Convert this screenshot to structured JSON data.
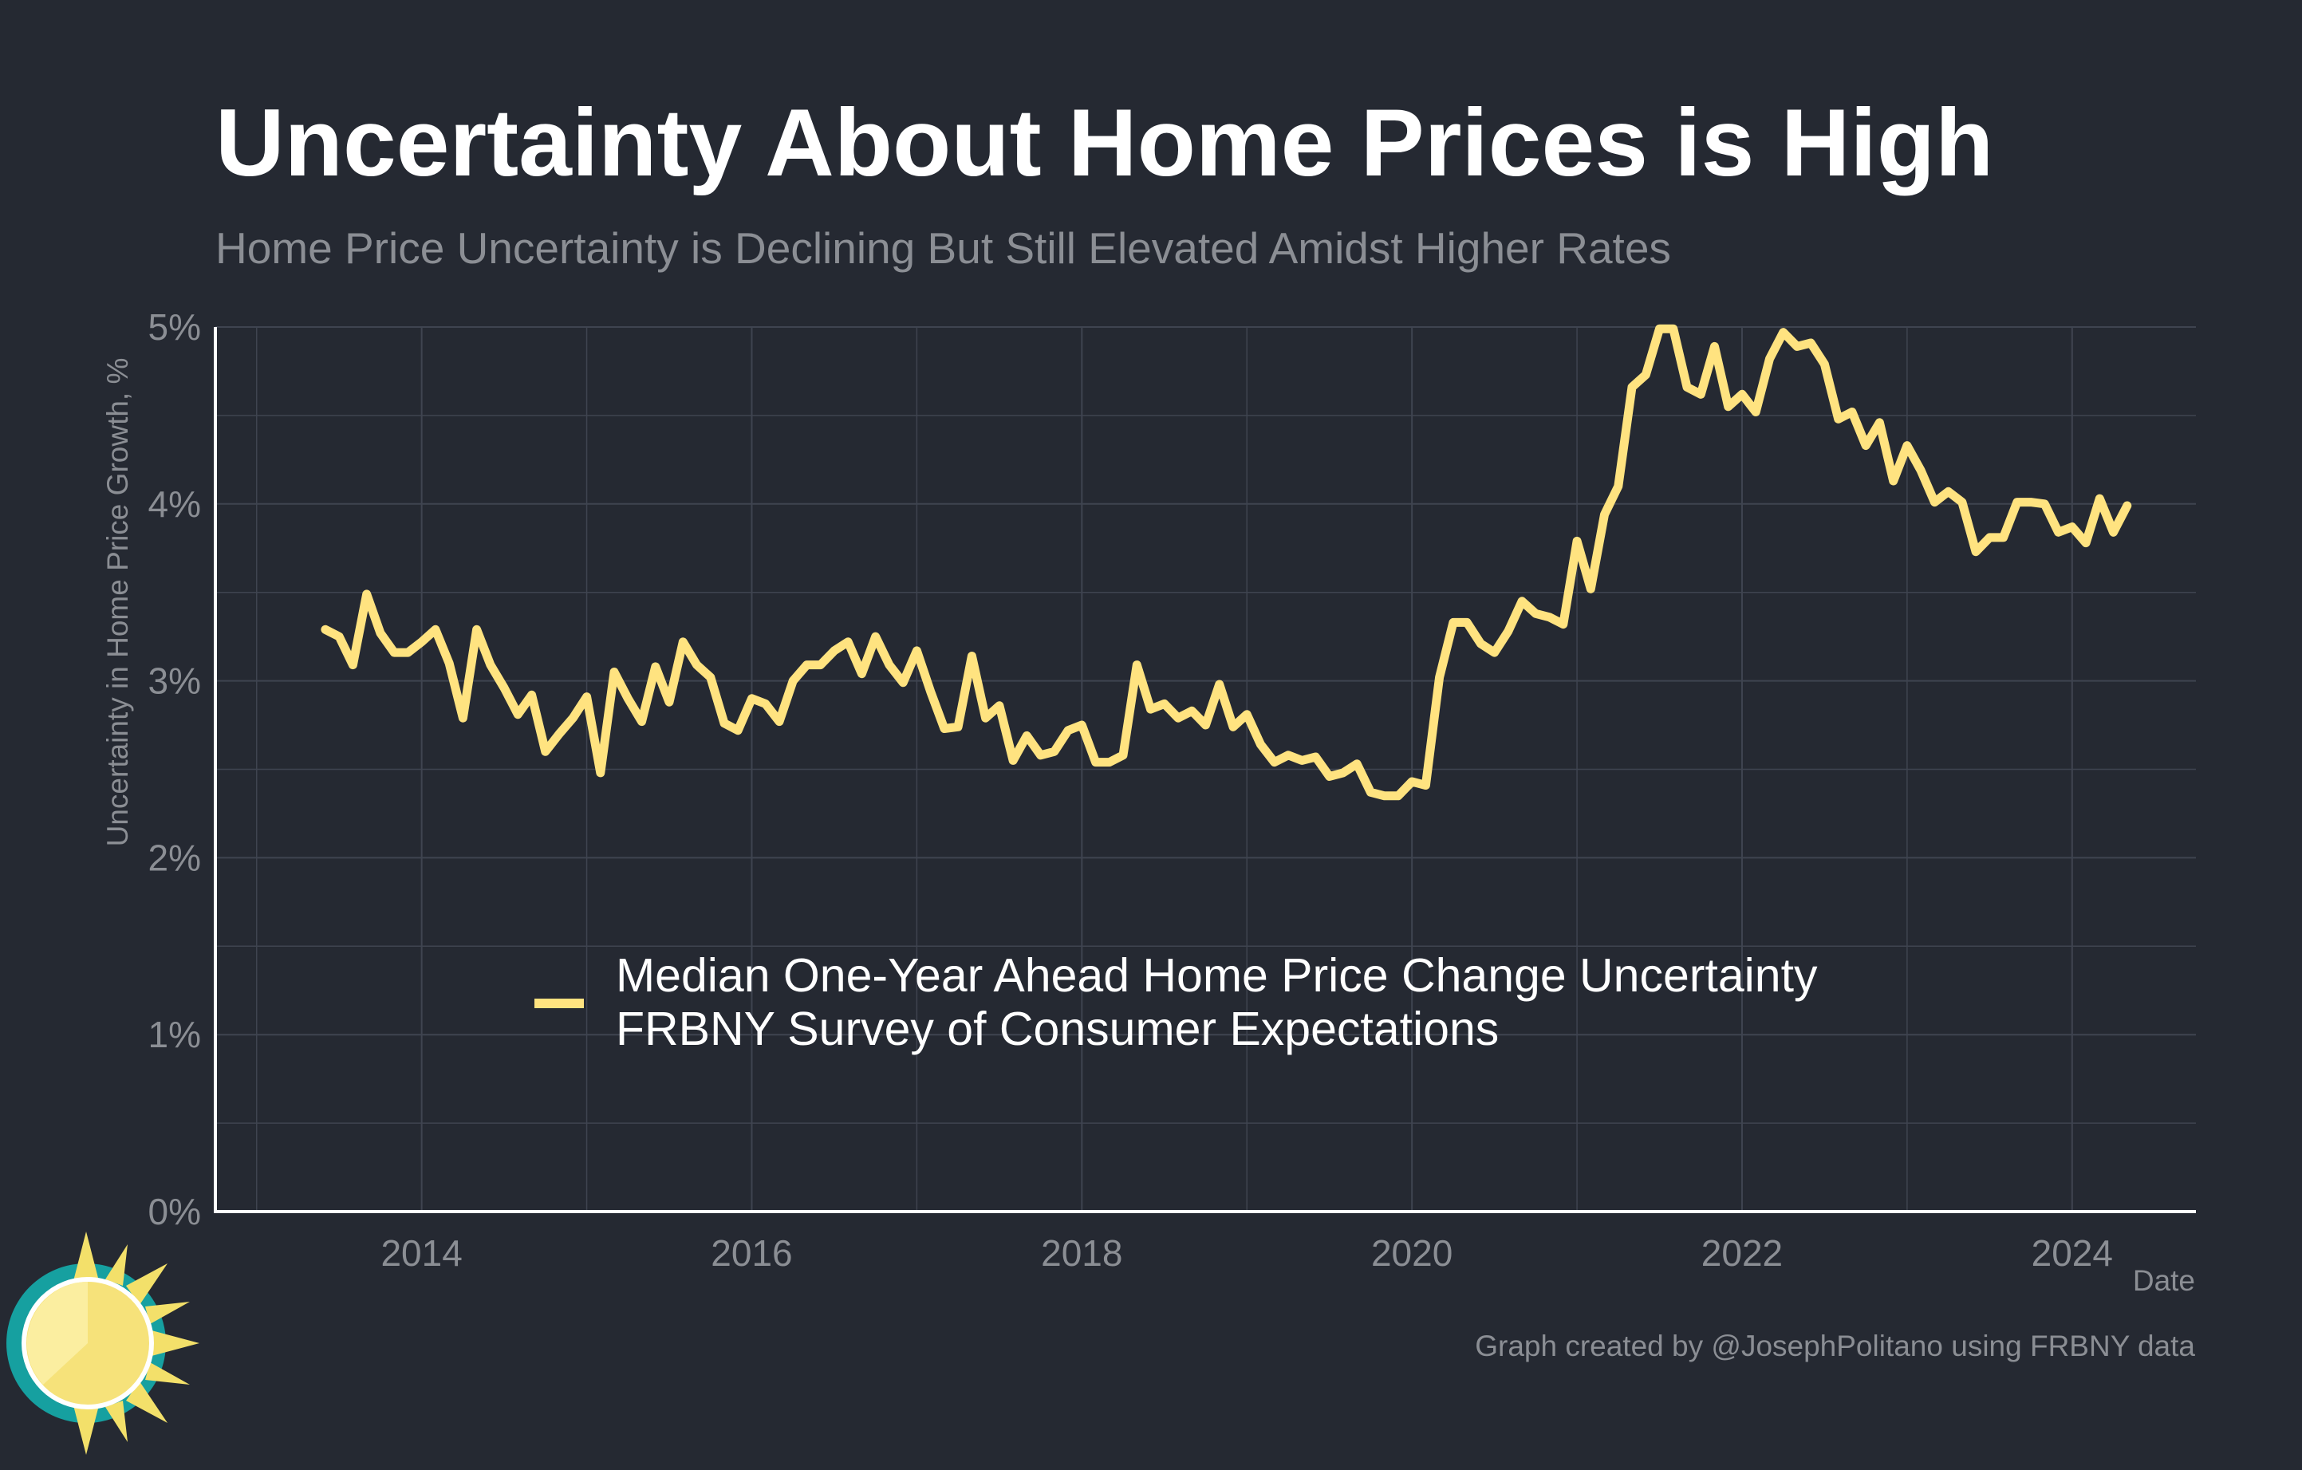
{
  "chart_data": {
    "type": "line",
    "title": "Uncertainty About Home Prices is High",
    "subtitle": "Home Price Uncertainty is Declining But Still Elevated Amidst Higher Rates",
    "xlabel": "Date",
    "ylabel": "Uncertainty in Home Price Growth, %",
    "xlim": [
      2012.75,
      2024.75
    ],
    "ylim": [
      0,
      5
    ],
    "x_ticks": [
      "2014",
      "2016",
      "2018",
      "2020",
      "2022",
      "2024"
    ],
    "y_ticks": [
      "0%",
      "1%",
      "2%",
      "3%",
      "4%",
      "5%"
    ],
    "grid": true,
    "legend": {
      "position": "center",
      "lines": [
        "Median One-Year Ahead Home Price Change Uncertainty",
        "FRBNY Survey of Consumer Expectations"
      ]
    },
    "series": [
      {
        "name": "Median One-Year Ahead Home Price Change Uncertainty",
        "color": "#ffe380",
        "points": [
          [
            "2013-06",
            3.29
          ],
          [
            "2013-07",
            3.25
          ],
          [
            "2013-08",
            3.09
          ],
          [
            "2013-09",
            3.49
          ],
          [
            "2013-10",
            3.27
          ],
          [
            "2013-11",
            3.16
          ],
          [
            "2013-12",
            3.16
          ],
          [
            "2014-01",
            3.22
          ],
          [
            "2014-02",
            3.29
          ],
          [
            "2014-03",
            3.1
          ],
          [
            "2014-04",
            2.79
          ],
          [
            "2014-05",
            3.29
          ],
          [
            "2014-06",
            3.09
          ],
          [
            "2014-07",
            2.96
          ],
          [
            "2014-08",
            2.81
          ],
          [
            "2014-09",
            2.92
          ],
          [
            "2014-10",
            2.6
          ],
          [
            "2014-11",
            2.7
          ],
          [
            "2014-12",
            2.79
          ],
          [
            "2015-01",
            2.91
          ],
          [
            "2015-02",
            2.48
          ],
          [
            "2015-03",
            3.05
          ],
          [
            "2015-04",
            2.9
          ],
          [
            "2015-05",
            2.77
          ],
          [
            "2015-06",
            3.08
          ],
          [
            "2015-07",
            2.88
          ],
          [
            "2015-08",
            3.22
          ],
          [
            "2015-09",
            3.09
          ],
          [
            "2015-10",
            3.02
          ],
          [
            "2015-11",
            2.76
          ],
          [
            "2015-12",
            2.72
          ],
          [
            "2016-01",
            2.9
          ],
          [
            "2016-02",
            2.87
          ],
          [
            "2016-03",
            2.77
          ],
          [
            "2016-04",
            3.0
          ],
          [
            "2016-05",
            3.09
          ],
          [
            "2016-06",
            3.09
          ],
          [
            "2016-07",
            3.17
          ],
          [
            "2016-08",
            3.22
          ],
          [
            "2016-09",
            3.04
          ],
          [
            "2016-10",
            3.25
          ],
          [
            "2016-11",
            3.09
          ],
          [
            "2016-12",
            2.99
          ],
          [
            "2017-01",
            3.17
          ],
          [
            "2017-02",
            2.94
          ],
          [
            "2017-03",
            2.73
          ],
          [
            "2017-04",
            2.74
          ],
          [
            "2017-05",
            3.14
          ],
          [
            "2017-06",
            2.79
          ],
          [
            "2017-07",
            2.86
          ],
          [
            "2017-08",
            2.55
          ],
          [
            "2017-09",
            2.69
          ],
          [
            "2017-10",
            2.58
          ],
          [
            "2017-11",
            2.6
          ],
          [
            "2017-12",
            2.72
          ],
          [
            "2018-01",
            2.75
          ],
          [
            "2018-02",
            2.54
          ],
          [
            "2018-03",
            2.54
          ],
          [
            "2018-04",
            2.58
          ],
          [
            "2018-05",
            3.09
          ],
          [
            "2018-06",
            2.84
          ],
          [
            "2018-07",
            2.87
          ],
          [
            "2018-08",
            2.79
          ],
          [
            "2018-09",
            2.83
          ],
          [
            "2018-10",
            2.75
          ],
          [
            "2018-11",
            2.98
          ],
          [
            "2018-12",
            2.74
          ],
          [
            "2019-01",
            2.81
          ],
          [
            "2019-02",
            2.64
          ],
          [
            "2019-03",
            2.54
          ],
          [
            "2019-04",
            2.58
          ],
          [
            "2019-05",
            2.55
          ],
          [
            "2019-06",
            2.57
          ],
          [
            "2019-07",
            2.46
          ],
          [
            "2019-08",
            2.48
          ],
          [
            "2019-09",
            2.53
          ],
          [
            "2019-10",
            2.37
          ],
          [
            "2019-11",
            2.35
          ],
          [
            "2019-12",
            2.35
          ],
          [
            "2020-01",
            2.43
          ],
          [
            "2020-02",
            2.41
          ],
          [
            "2020-03",
            3.02
          ],
          [
            "2020-04",
            3.33
          ],
          [
            "2020-05",
            3.33
          ],
          [
            "2020-06",
            3.21
          ],
          [
            "2020-07",
            3.16
          ],
          [
            "2020-08",
            3.28
          ],
          [
            "2020-09",
            3.45
          ],
          [
            "2020-10",
            3.38
          ],
          [
            "2020-11",
            3.36
          ],
          [
            "2020-12",
            3.32
          ],
          [
            "2021-01",
            3.79
          ],
          [
            "2021-02",
            3.52
          ],
          [
            "2021-03",
            3.94
          ],
          [
            "2021-04",
            4.1
          ],
          [
            "2021-05",
            4.66
          ],
          [
            "2021-06",
            4.73
          ],
          [
            "2021-07",
            4.99
          ],
          [
            "2021-08",
            4.99
          ],
          [
            "2021-09",
            4.66
          ],
          [
            "2021-10",
            4.62
          ],
          [
            "2021-11",
            4.89
          ],
          [
            "2021-12",
            4.55
          ],
          [
            "2022-01",
            4.62
          ],
          [
            "2022-02",
            4.52
          ],
          [
            "2022-03",
            4.82
          ],
          [
            "2022-04",
            4.97
          ],
          [
            "2022-05",
            4.89
          ],
          [
            "2022-06",
            4.91
          ],
          [
            "2022-07",
            4.79
          ],
          [
            "2022-08",
            4.48
          ],
          [
            "2022-09",
            4.52
          ],
          [
            "2022-10",
            4.33
          ],
          [
            "2022-11",
            4.46
          ],
          [
            "2022-12",
            4.13
          ],
          [
            "2023-01",
            4.33
          ],
          [
            "2023-02",
            4.19
          ],
          [
            "2023-03",
            4.01
          ],
          [
            "2023-04",
            4.07
          ],
          [
            "2023-05",
            4.01
          ],
          [
            "2023-06",
            3.73
          ],
          [
            "2023-07",
            3.81
          ],
          [
            "2023-08",
            3.81
          ],
          [
            "2023-09",
            4.01
          ],
          [
            "2023-10",
            4.01
          ],
          [
            "2023-11",
            4.0
          ],
          [
            "2023-12",
            3.84
          ],
          [
            "2024-01",
            3.87
          ],
          [
            "2024-02",
            3.78
          ],
          [
            "2024-03",
            4.03
          ],
          [
            "2024-04",
            3.84
          ],
          [
            "2024-05",
            3.99
          ]
        ]
      }
    ]
  },
  "caption": "Graph created by @JosephPolitano using FRBNY data",
  "colors": {
    "background": "#252932",
    "line": "#ffe380",
    "grid": "#3f4450",
    "axis": "#ffffff",
    "muted_text": "#8b8e94",
    "title": "#ffffff"
  },
  "logo": {
    "icon": "sun-logo-icon"
  }
}
